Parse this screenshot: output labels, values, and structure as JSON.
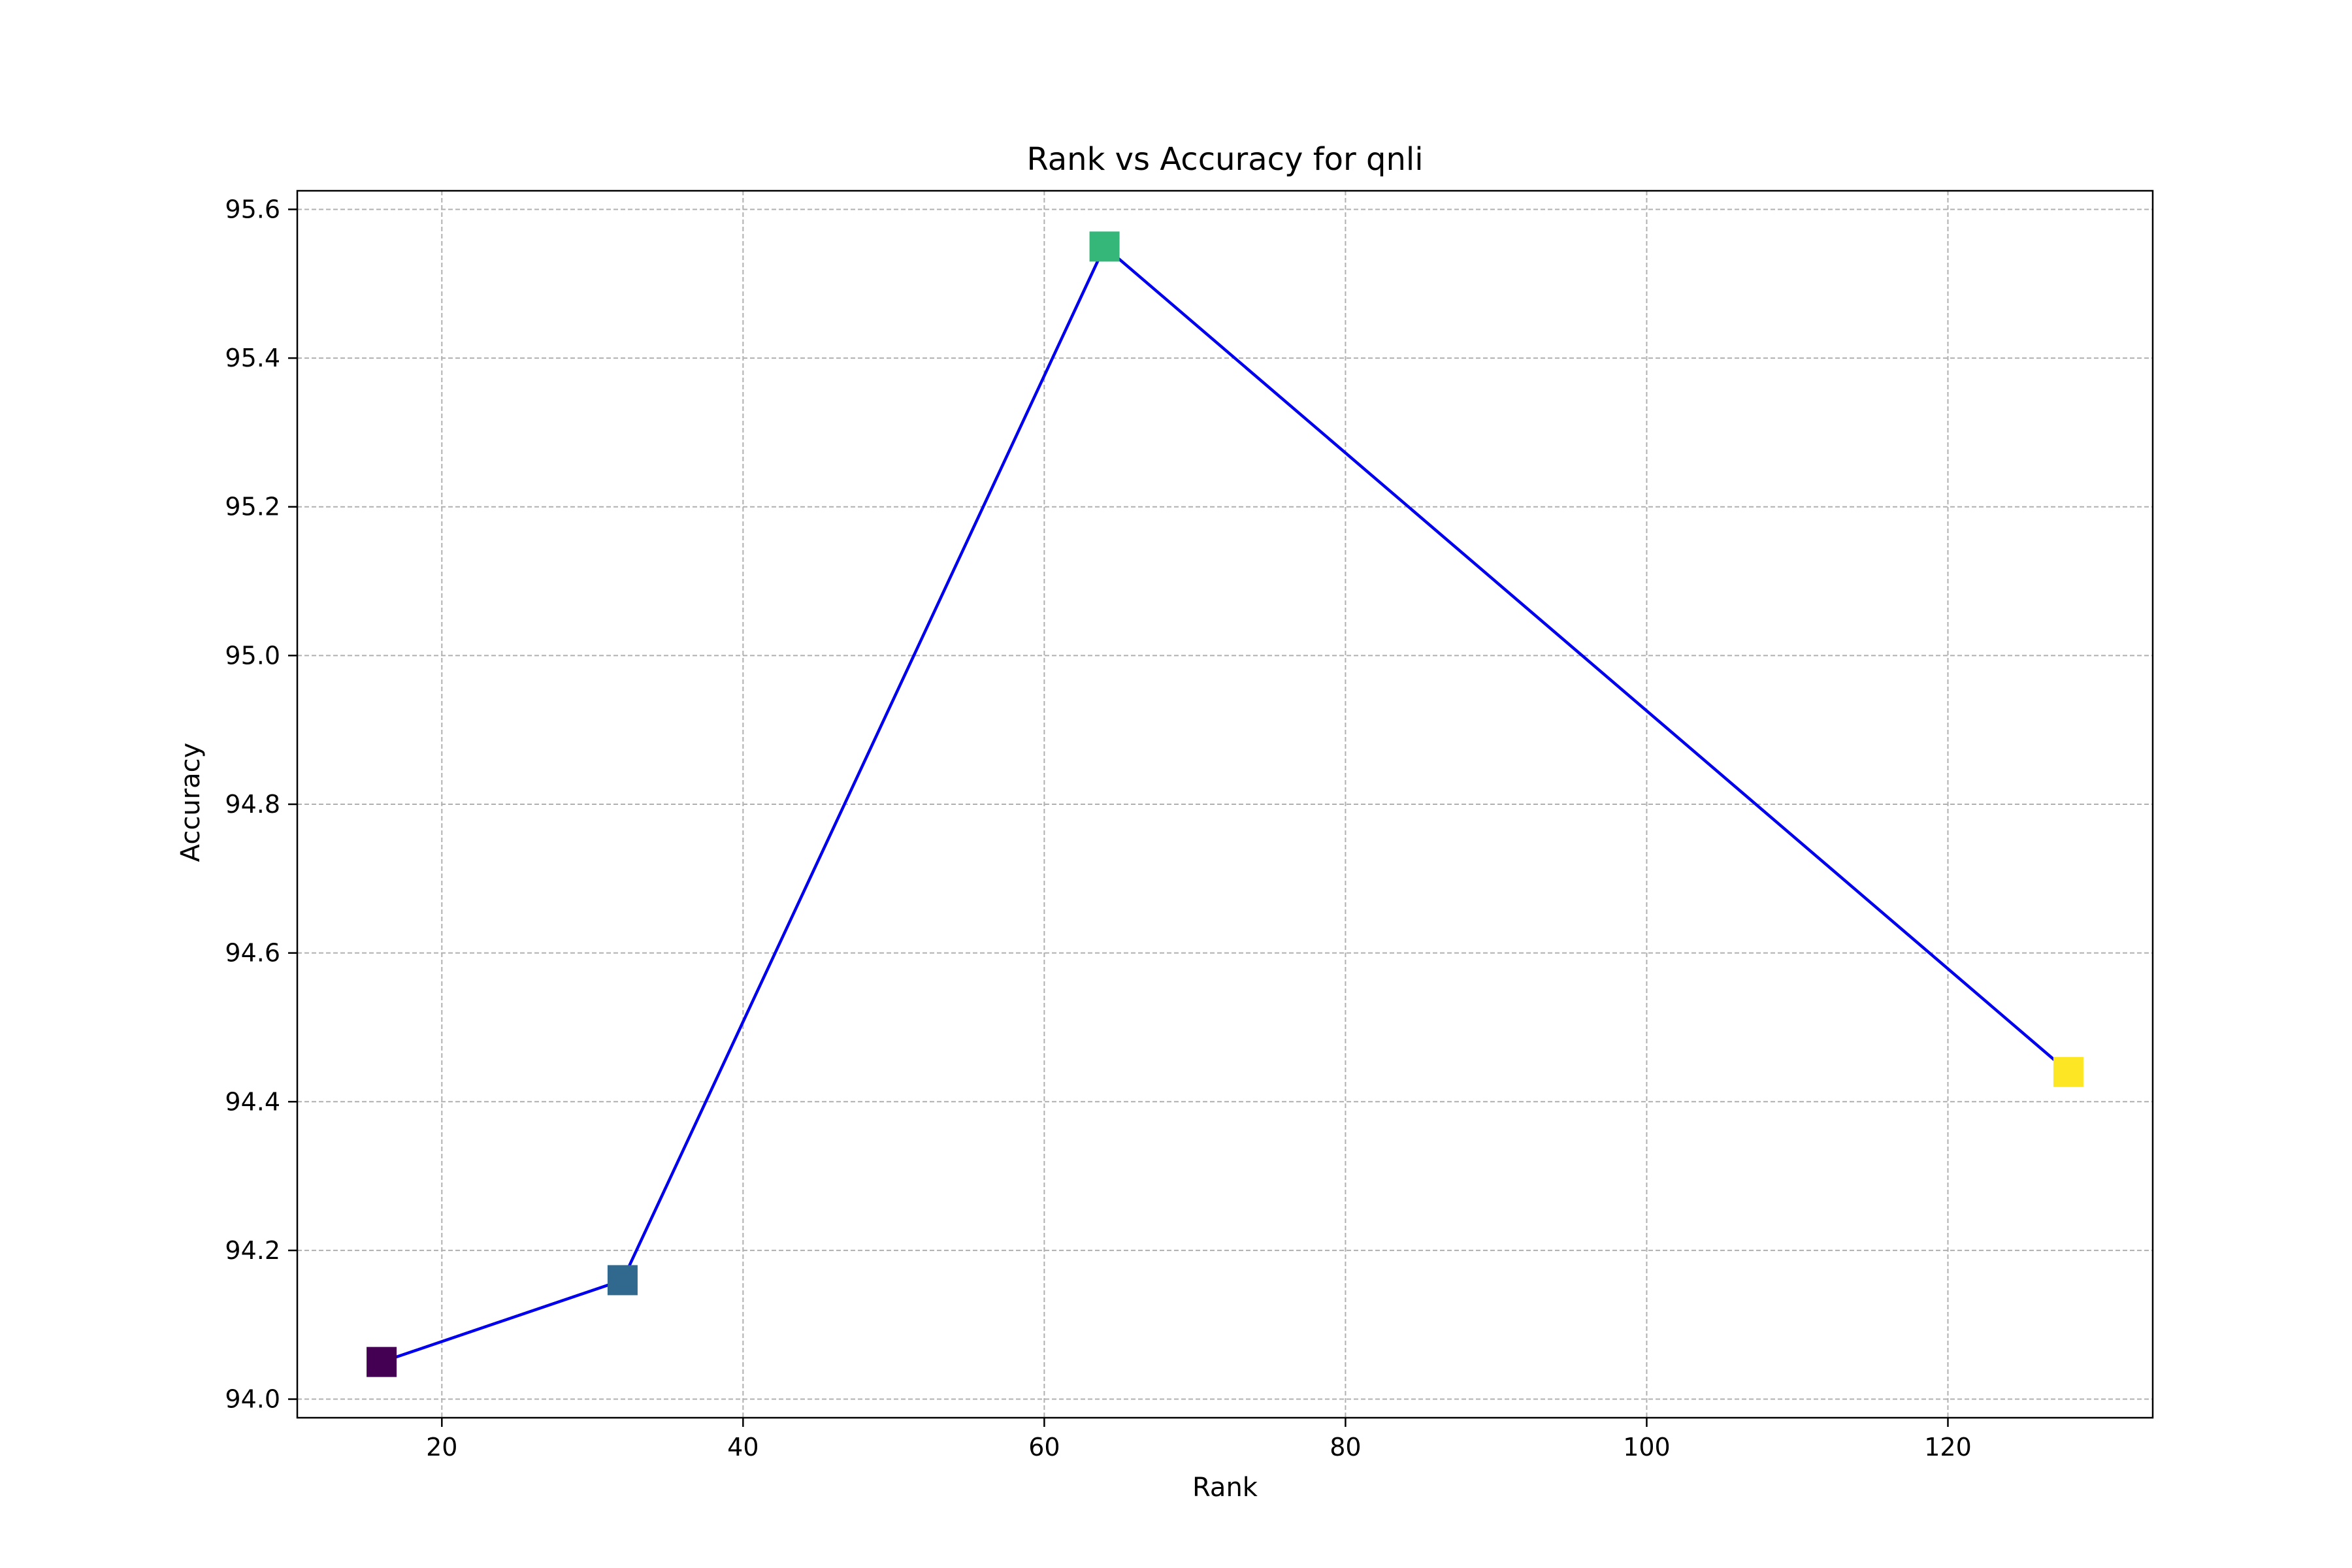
{
  "chart_data": {
    "type": "line",
    "title": "Rank vs Accuracy for qnli",
    "xlabel": "Rank",
    "ylabel": "Accuracy",
    "xlim": [
      10.4,
      133.6
    ],
    "ylim": [
      93.975,
      95.625
    ],
    "xticks": [
      20,
      40,
      60,
      80,
      100,
      120
    ],
    "yticks": [
      94.0,
      94.2,
      94.4,
      94.6,
      94.8,
      95.0,
      95.2,
      95.4,
      95.6
    ],
    "grid": true,
    "legend": "none",
    "line_color": "#0000ee",
    "points": [
      {
        "x": 16,
        "y": 94.05,
        "color": "#440154"
      },
      {
        "x": 32,
        "y": 94.16,
        "color": "#31688e"
      },
      {
        "x": 64,
        "y": 95.55,
        "color": "#35b779"
      },
      {
        "x": 128,
        "y": 94.44,
        "color": "#fde725"
      }
    ]
  }
}
